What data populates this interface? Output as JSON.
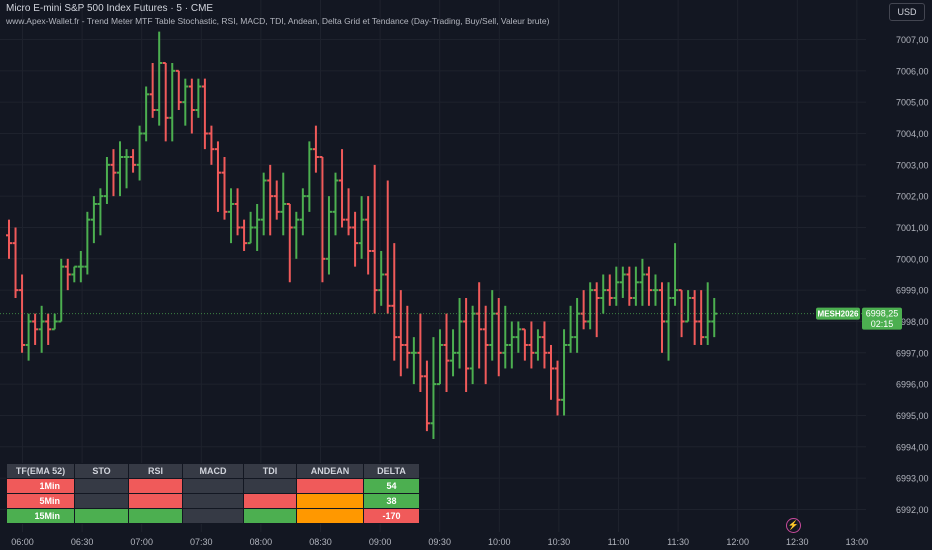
{
  "header": {
    "symbol_line": "Micro E-mini S&P 500 Index Futures · 5 · CME",
    "indicator_line": "www.Apex-Wallet.fr - Trend Meter MTF Table Stochastic, RSI, MACD, TDI, Andean, Delta Grid et Tendance (Day-Trading, Buy/Sell, Valeur brute)"
  },
  "currency_button": "USD",
  "price_tag": {
    "symbol": "MESH2026",
    "price": "6998,25",
    "countdown": "02:15"
  },
  "bolt_icon": "⚡",
  "colors": {
    "background": "#131722",
    "up": "#4caf50",
    "down": "#f05a5a",
    "grid": "#1e222d",
    "axis_text": "#b2b5be"
  },
  "table": {
    "headers": [
      "TF(EMA 52)",
      "STO",
      "RSI",
      "MACD",
      "TDI",
      "ANDEAN",
      "DELTA"
    ],
    "rows": [
      {
        "tf": "1Min",
        "colors": [
          "red",
          "gray",
          "red",
          "gray",
          "gray",
          "red",
          "green"
        ],
        "delta": "54"
      },
      {
        "tf": "5Min",
        "colors": [
          "red",
          "gray",
          "red",
          "gray",
          "red",
          "orange",
          "green"
        ],
        "delta": "38"
      },
      {
        "tf": "15Min",
        "colors": [
          "green",
          "green",
          "green",
          "gray",
          "green",
          "orange",
          "red"
        ],
        "delta": "-170"
      }
    ]
  },
  "chart_data": {
    "type": "ohlc",
    "y_axis_labels": [
      "7007,00",
      "7006,00",
      "7005,00",
      "7004,00",
      "7003,00",
      "7002,00",
      "7001,00",
      "7000,00",
      "6999,00",
      "6998,00",
      "6997,00",
      "6996,00",
      "6995,00",
      "6994,00",
      "6993,00",
      "6992,00"
    ],
    "y_axis_values": [
      7007,
      7006,
      7005,
      7004,
      7003,
      7002,
      7001,
      7000,
      6999,
      6998,
      6997,
      6996,
      6995,
      6994,
      6993,
      6992
    ],
    "ylim": [
      6991.5,
      7007.5
    ],
    "x_axis_labels": [
      "06:00",
      "06:30",
      "07:00",
      "07:30",
      "08:00",
      "08:30",
      "09:00",
      "09:30",
      "10:00",
      "10:30",
      "11:00",
      "11:30",
      "12:00",
      "12:30",
      "13:00"
    ],
    "current_price": 6998.25,
    "bars": [
      {
        "o": 7000.75,
        "h": 7001.25,
        "l": 7000.0,
        "c": 7000.5
      },
      {
        "o": 7000.5,
        "h": 7001.0,
        "l": 6998.75,
        "c": 6999.0
      },
      {
        "o": 6999.0,
        "h": 6999.5,
        "l": 6997.0,
        "c": 6997.25
      },
      {
        "o": 6997.25,
        "h": 6998.25,
        "l": 6996.75,
        "c": 6998.0
      },
      {
        "o": 6998.0,
        "h": 6998.25,
        "l": 6997.25,
        "c": 6997.75
      },
      {
        "o": 6997.75,
        "h": 6998.5,
        "l": 6997.0,
        "c": 6998.0
      },
      {
        "o": 6998.0,
        "h": 6998.25,
        "l": 6997.25,
        "c": 6997.75
      },
      {
        "o": 6997.75,
        "h": 6998.25,
        "l": 6997.75,
        "c": 6998.0
      },
      {
        "o": 6998.0,
        "h": 7000.0,
        "l": 6998.0,
        "c": 6999.75
      },
      {
        "o": 6999.75,
        "h": 7000.0,
        "l": 6999.0,
        "c": 6999.5
      },
      {
        "o": 6999.5,
        "h": 6999.75,
        "l": 6999.25,
        "c": 6999.75
      },
      {
        "o": 6999.75,
        "h": 7000.25,
        "l": 6999.25,
        "c": 6999.75
      },
      {
        "o": 6999.75,
        "h": 7001.5,
        "l": 6999.5,
        "c": 7001.25
      },
      {
        "o": 7001.25,
        "h": 7002.0,
        "l": 7000.5,
        "c": 7001.75
      },
      {
        "o": 7001.75,
        "h": 7002.25,
        "l": 7000.75,
        "c": 7002.0
      },
      {
        "o": 7002.0,
        "h": 7003.25,
        "l": 7001.75,
        "c": 7003.0
      },
      {
        "o": 7003.0,
        "h": 7003.5,
        "l": 7002.0,
        "c": 7002.75
      },
      {
        "o": 7002.75,
        "h": 7003.75,
        "l": 7002.0,
        "c": 7003.25
      },
      {
        "o": 7003.25,
        "h": 7003.5,
        "l": 7002.25,
        "c": 7003.25
      },
      {
        "o": 7003.25,
        "h": 7003.5,
        "l": 7002.75,
        "c": 7003.0
      },
      {
        "o": 7003.0,
        "h": 7004.25,
        "l": 7002.5,
        "c": 7004.0
      },
      {
        "o": 7004.0,
        "h": 7005.5,
        "l": 7003.75,
        "c": 7005.25
      },
      {
        "o": 7005.25,
        "h": 7006.25,
        "l": 7004.5,
        "c": 7004.75
      },
      {
        "o": 7004.75,
        "h": 7007.25,
        "l": 7004.25,
        "c": 7006.25
      },
      {
        "o": 7006.25,
        "h": 7006.25,
        "l": 7003.75,
        "c": 7004.5
      },
      {
        "o": 7004.5,
        "h": 7006.25,
        "l": 7003.75,
        "c": 7006.0
      },
      {
        "o": 7006.0,
        "h": 7006.0,
        "l": 7004.75,
        "c": 7005.0
      },
      {
        "o": 7005.0,
        "h": 7005.75,
        "l": 7004.25,
        "c": 7005.5
      },
      {
        "o": 7005.5,
        "h": 7005.75,
        "l": 7004.0,
        "c": 7004.75
      },
      {
        "o": 7004.75,
        "h": 7005.75,
        "l": 7004.5,
        "c": 7005.5
      },
      {
        "o": 7005.5,
        "h": 7005.75,
        "l": 7003.5,
        "c": 7004.0
      },
      {
        "o": 7004.0,
        "h": 7004.25,
        "l": 7003.0,
        "c": 7003.5
      },
      {
        "o": 7003.5,
        "h": 7003.75,
        "l": 7001.5,
        "c": 7002.75
      },
      {
        "o": 7002.75,
        "h": 7003.25,
        "l": 7001.25,
        "c": 7001.5
      },
      {
        "o": 7001.5,
        "h": 7002.25,
        "l": 7000.5,
        "c": 7001.75
      },
      {
        "o": 7001.75,
        "h": 7002.25,
        "l": 7000.75,
        "c": 7001.0
      },
      {
        "o": 7001.0,
        "h": 7001.25,
        "l": 7000.25,
        "c": 7000.5
      },
      {
        "o": 7000.5,
        "h": 7001.5,
        "l": 7000.5,
        "c": 7001.0
      },
      {
        "o": 7001.0,
        "h": 7001.75,
        "l": 7000.25,
        "c": 7001.25
      },
      {
        "o": 7001.25,
        "h": 7002.75,
        "l": 7000.75,
        "c": 7002.5
      },
      {
        "o": 7002.5,
        "h": 7003.0,
        "l": 7000.75,
        "c": 7002.0
      },
      {
        "o": 7002.0,
        "h": 7002.5,
        "l": 7001.25,
        "c": 7001.5
      },
      {
        "o": 7001.5,
        "h": 7002.75,
        "l": 7000.75,
        "c": 7001.75
      },
      {
        "o": 7001.75,
        "h": 7001.75,
        "l": 6999.25,
        "c": 7001.0
      },
      {
        "o": 7001.0,
        "h": 7001.5,
        "l": 7000.0,
        "c": 7001.25
      },
      {
        "o": 7001.25,
        "h": 7002.25,
        "l": 7000.75,
        "c": 7002.0
      },
      {
        "o": 7002.0,
        "h": 7003.75,
        "l": 7001.5,
        "c": 7003.5
      },
      {
        "o": 7003.5,
        "h": 7004.25,
        "l": 7002.75,
        "c": 7003.25
      },
      {
        "o": 7003.25,
        "h": 7003.25,
        "l": 6999.25,
        "c": 7000.0
      },
      {
        "o": 7000.0,
        "h": 7002.0,
        "l": 6999.5,
        "c": 7001.5
      },
      {
        "o": 7001.5,
        "h": 7002.75,
        "l": 7000.75,
        "c": 7002.5
      },
      {
        "o": 7002.5,
        "h": 7003.5,
        "l": 7001.0,
        "c": 7001.25
      },
      {
        "o": 7001.25,
        "h": 7002.25,
        "l": 7000.75,
        "c": 7001.0
      },
      {
        "o": 7001.0,
        "h": 7001.5,
        "l": 6999.75,
        "c": 7000.5
      },
      {
        "o": 7000.5,
        "h": 7002.0,
        "l": 7000.0,
        "c": 7001.25
      },
      {
        "o": 7001.25,
        "h": 7002.0,
        "l": 6999.5,
        "c": 7000.25
      },
      {
        "o": 7000.25,
        "h": 7003.0,
        "l": 6998.25,
        "c": 6999.0
      },
      {
        "o": 6999.0,
        "h": 7000.25,
        "l": 6998.5,
        "c": 6999.5
      },
      {
        "o": 6999.5,
        "h": 7002.5,
        "l": 6998.25,
        "c": 6998.5
      },
      {
        "o": 6998.5,
        "h": 7000.5,
        "l": 6996.75,
        "c": 6997.5
      },
      {
        "o": 6997.5,
        "h": 6999.0,
        "l": 6996.25,
        "c": 6997.25
      },
      {
        "o": 6997.25,
        "h": 6998.5,
        "l": 6996.5,
        "c": 6997.0
      },
      {
        "o": 6997.0,
        "h": 6997.5,
        "l": 6996.0,
        "c": 6997.0
      },
      {
        "o": 6997.0,
        "h": 6998.25,
        "l": 6995.75,
        "c": 6996.25
      },
      {
        "o": 6996.25,
        "h": 6996.75,
        "l": 6994.5,
        "c": 6994.75
      },
      {
        "o": 6994.75,
        "h": 6997.5,
        "l": 6994.25,
        "c": 6996.0
      },
      {
        "o": 6996.0,
        "h": 6997.75,
        "l": 6996.0,
        "c": 6997.25
      },
      {
        "o": 6997.25,
        "h": 6998.25,
        "l": 6995.75,
        "c": 6996.75
      },
      {
        "o": 6996.75,
        "h": 6997.75,
        "l": 6996.25,
        "c": 6997.0
      },
      {
        "o": 6997.0,
        "h": 6998.75,
        "l": 6996.5,
        "c": 6998.0
      },
      {
        "o": 6998.0,
        "h": 6998.75,
        "l": 6995.75,
        "c": 6996.5
      },
      {
        "o": 6996.5,
        "h": 6998.5,
        "l": 6996.0,
        "c": 6998.25
      },
      {
        "o": 6998.25,
        "h": 6999.25,
        "l": 6996.5,
        "c": 6997.75
      },
      {
        "o": 6997.75,
        "h": 6998.5,
        "l": 6996.0,
        "c": 6997.25
      },
      {
        "o": 6997.25,
        "h": 6999.0,
        "l": 6996.75,
        "c": 6998.25
      },
      {
        "o": 6998.25,
        "h": 6998.75,
        "l": 6996.25,
        "c": 6997.0
      },
      {
        "o": 6997.0,
        "h": 6998.5,
        "l": 6996.5,
        "c": 6997.25
      },
      {
        "o": 6997.25,
        "h": 6998.0,
        "l": 6996.5,
        "c": 6997.5
      },
      {
        "o": 6997.5,
        "h": 6998.0,
        "l": 6997.0,
        "c": 6997.75
      },
      {
        "o": 6997.75,
        "h": 6997.75,
        "l": 6996.75,
        "c": 6997.25
      },
      {
        "o": 6997.25,
        "h": 6998.0,
        "l": 6996.5,
        "c": 6997.0
      },
      {
        "o": 6997.0,
        "h": 6997.75,
        "l": 6996.75,
        "c": 6997.5
      },
      {
        "o": 6997.5,
        "h": 6998.0,
        "l": 6996.5,
        "c": 6997.0
      },
      {
        "o": 6997.0,
        "h": 6997.25,
        "l": 6995.5,
        "c": 6996.5
      },
      {
        "o": 6996.5,
        "h": 6996.75,
        "l": 6995.0,
        "c": 6995.5
      },
      {
        "o": 6995.5,
        "h": 6997.75,
        "l": 6995.0,
        "c": 6997.25
      },
      {
        "o": 6997.25,
        "h": 6998.5,
        "l": 6997.0,
        "c": 6997.5
      },
      {
        "o": 6997.5,
        "h": 6998.75,
        "l": 6997.0,
        "c": 6998.25
      },
      {
        "o": 6998.25,
        "h": 6999.0,
        "l": 6997.75,
        "c": 6998.0
      },
      {
        "o": 6998.0,
        "h": 6999.25,
        "l": 6997.75,
        "c": 6999.0
      },
      {
        "o": 6999.0,
        "h": 6999.25,
        "l": 6997.5,
        "c": 6998.75
      },
      {
        "o": 6998.75,
        "h": 6999.5,
        "l": 6998.25,
        "c": 6999.0
      },
      {
        "o": 6999.0,
        "h": 6999.5,
        "l": 6998.5,
        "c": 6998.75
      },
      {
        "o": 6998.75,
        "h": 6999.75,
        "l": 6998.5,
        "c": 6999.25
      },
      {
        "o": 6999.25,
        "h": 6999.75,
        "l": 6998.75,
        "c": 6999.5
      },
      {
        "o": 6999.5,
        "h": 6999.75,
        "l": 6998.5,
        "c": 6998.75
      },
      {
        "o": 6998.75,
        "h": 6999.75,
        "l": 6998.5,
        "c": 6999.25
      },
      {
        "o": 6999.25,
        "h": 7000.0,
        "l": 6998.5,
        "c": 6999.5
      },
      {
        "o": 6999.5,
        "h": 6999.75,
        "l": 6998.5,
        "c": 6999.0
      },
      {
        "o": 6999.0,
        "h": 6999.5,
        "l": 6998.5,
        "c": 6999.0
      },
      {
        "o": 6999.0,
        "h": 6999.25,
        "l": 6997.0,
        "c": 6998.0
      },
      {
        "o": 6998.0,
        "h": 6999.25,
        "l": 6996.75,
        "c": 6998.75
      },
      {
        "o": 6998.75,
        "h": 7000.5,
        "l": 6998.5,
        "c": 6999.0
      },
      {
        "o": 6999.0,
        "h": 6999.0,
        "l": 6997.5,
        "c": 6998.0
      },
      {
        "o": 6998.0,
        "h": 6999.0,
        "l": 6998.0,
        "c": 6998.75
      },
      {
        "o": 6998.75,
        "h": 6999.0,
        "l": 6997.25,
        "c": 6998.0
      },
      {
        "o": 6998.0,
        "h": 6999.0,
        "l": 6997.25,
        "c": 6997.5
      },
      {
        "o": 6997.5,
        "h": 6999.25,
        "l": 6997.25,
        "c": 6998.0
      },
      {
        "o": 6998.0,
        "h": 6998.75,
        "l": 6997.5,
        "c": 6998.25
      }
    ]
  }
}
